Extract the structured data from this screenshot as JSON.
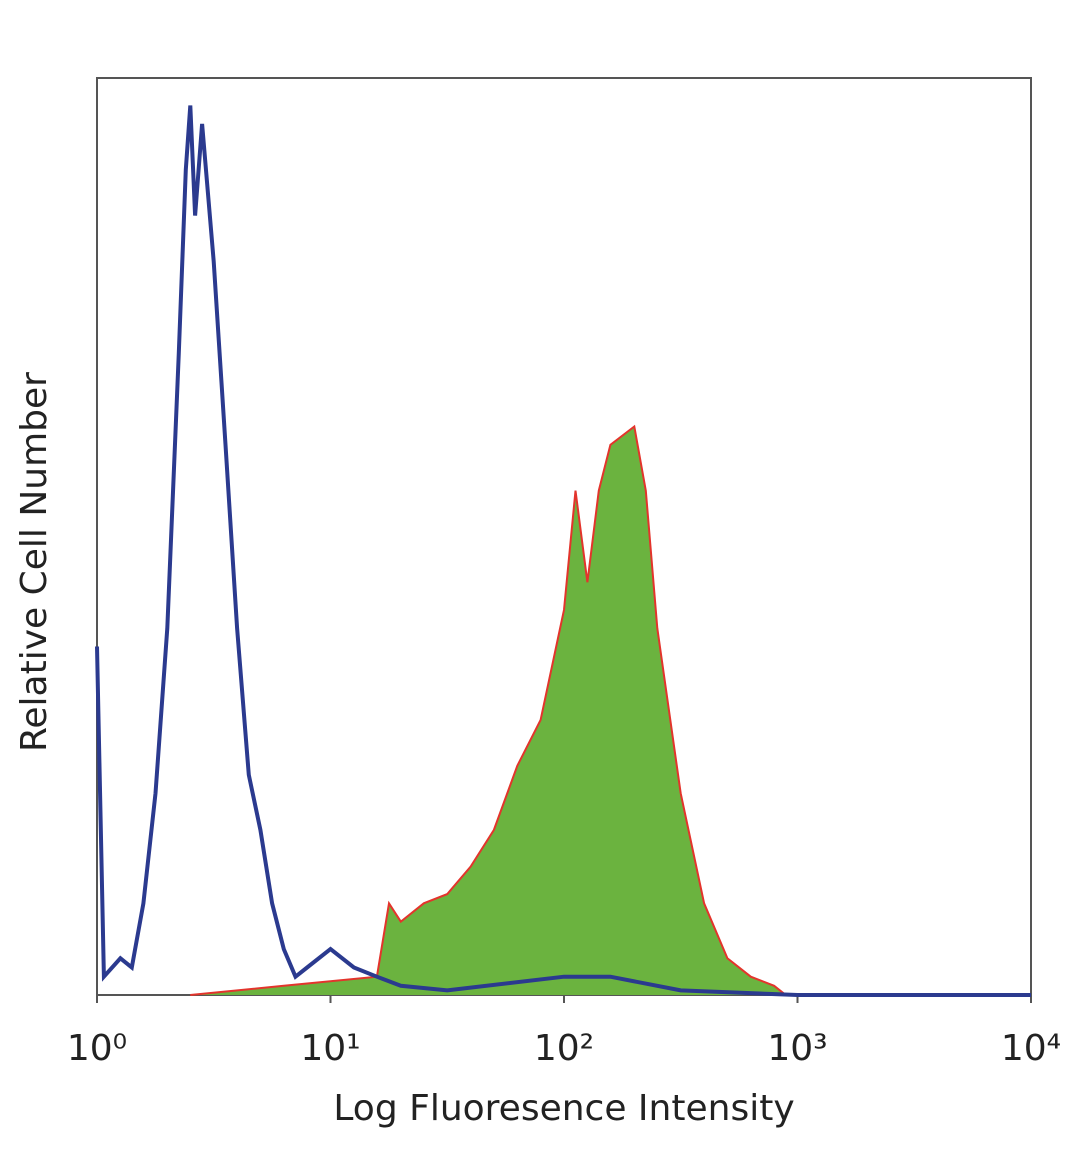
{
  "chart_data": {
    "type": "histogram-overlay",
    "x_label": "Log Fluoresence Intensity",
    "y_label": "Relative Cell Number",
    "xscale": "log",
    "xlim": [
      1,
      10000
    ],
    "xticks": [
      {
        "value": 1,
        "label": "10⁰"
      },
      {
        "value": 10,
        "label": "10¹"
      },
      {
        "value": 100,
        "label": "10²"
      },
      {
        "value": 1000,
        "label": "10³"
      },
      {
        "value": 10000,
        "label": "10⁴"
      }
    ],
    "ylim": [
      0,
      100
    ],
    "series": [
      {
        "color": "#6bb33f",
        "edge_color": "#e3342c",
        "filled": true,
        "x": [
          2.51,
          6.31,
          15.8,
          17.8,
          20,
          25.1,
          31.6,
          39.8,
          50.1,
          63.1,
          79.4,
          100,
          112,
          126,
          141,
          158,
          200,
          224,
          251,
          316,
          398,
          501,
          631,
          794,
          891
        ],
        "values": [
          0,
          1,
          2,
          10,
          8,
          10,
          11,
          14,
          18,
          25,
          30,
          42,
          55,
          45,
          55,
          60,
          62,
          55,
          40,
          22,
          10,
          4,
          2,
          1,
          0
        ]
      },
      {
        "color": "#2b3a8f",
        "filled": false,
        "x": [
          1,
          1.07,
          1.26,
          1.41,
          1.58,
          1.78,
          2.0,
          2.24,
          2.4,
          2.51,
          2.63,
          2.82,
          3.16,
          3.55,
          3.98,
          4.47,
          5.01,
          5.62,
          6.31,
          7.08,
          7.94,
          10,
          12.6,
          15.8,
          20,
          31.6,
          100,
          158,
          316,
          1000,
          10000
        ],
        "values": [
          38,
          2,
          4,
          3,
          10,
          22,
          40,
          70,
          90,
          97,
          85,
          95,
          80,
          60,
          40,
          24,
          18,
          10,
          5,
          2,
          3,
          5,
          3,
          2,
          1,
          0.5,
          2,
          2,
          0.5,
          0,
          0
        ]
      }
    ]
  }
}
